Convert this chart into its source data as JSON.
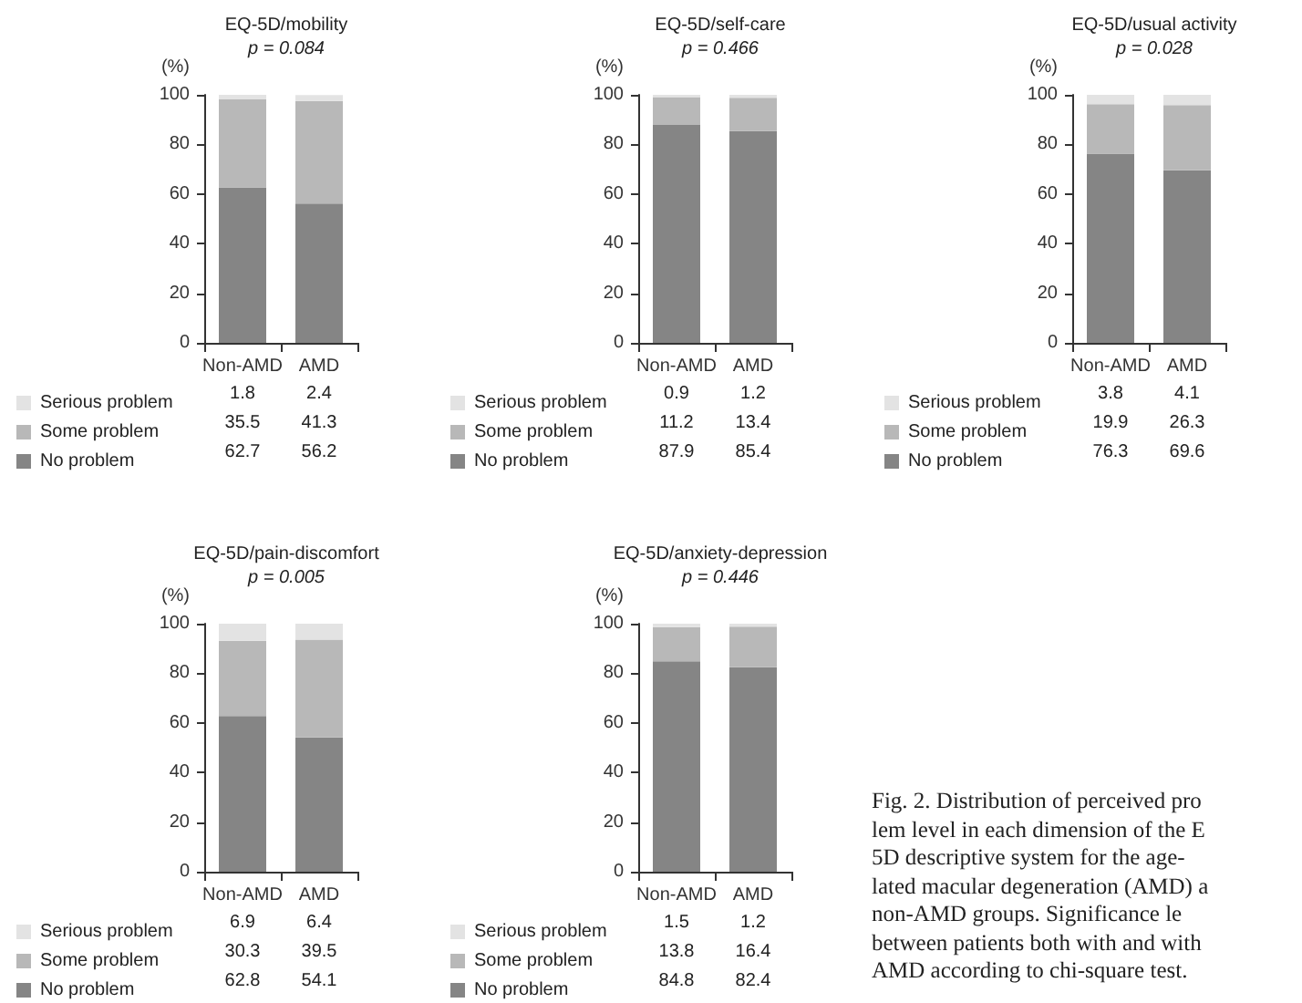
{
  "chart_data": [
    {
      "type": "bar",
      "title": "EQ-5D/mobility",
      "subtitle": "p = 0.084",
      "ylabel": "(%)",
      "categories": [
        "Non-AMD",
        "AMD"
      ],
      "stacked": true,
      "ylim": [
        0,
        100
      ],
      "yticks": [
        0,
        20,
        40,
        60,
        80,
        100
      ],
      "grid": false,
      "legend": "bottom",
      "data_labels": true,
      "series": [
        {
          "name": "No problem",
          "color": "#858585",
          "values": [
            62.7,
            56.2
          ]
        },
        {
          "name": "Some problem",
          "color": "#b8b8b8",
          "values": [
            35.5,
            41.3
          ]
        },
        {
          "name": "Serious problem",
          "color": "#e3e3e3",
          "values": [
            1.8,
            2.4
          ]
        }
      ]
    },
    {
      "type": "bar",
      "title": "EQ-5D/self-care",
      "subtitle": "p = 0.466",
      "ylabel": "(%)",
      "categories": [
        "Non-AMD",
        "AMD"
      ],
      "stacked": true,
      "ylim": [
        0,
        100
      ],
      "yticks": [
        0,
        20,
        40,
        60,
        80,
        100
      ],
      "grid": false,
      "legend": "bottom",
      "data_labels": true,
      "series": [
        {
          "name": "No problem",
          "color": "#858585",
          "values": [
            87.9,
            85.4
          ]
        },
        {
          "name": "Some problem",
          "color": "#b8b8b8",
          "values": [
            11.2,
            13.4
          ]
        },
        {
          "name": "Serious problem",
          "color": "#e3e3e3",
          "values": [
            0.9,
            1.2
          ]
        }
      ]
    },
    {
      "type": "bar",
      "title": "EQ-5D/usual activity",
      "subtitle": "p = 0.028",
      "ylabel": "(%)",
      "categories": [
        "Non-AMD",
        "AMD"
      ],
      "stacked": true,
      "ylim": [
        0,
        100
      ],
      "yticks": [
        0,
        20,
        40,
        60,
        80,
        100
      ],
      "grid": false,
      "legend": "bottom",
      "data_labels": true,
      "series": [
        {
          "name": "No problem",
          "color": "#858585",
          "values": [
            76.3,
            69.6
          ]
        },
        {
          "name": "Some problem",
          "color": "#b8b8b8",
          "values": [
            19.9,
            26.3
          ]
        },
        {
          "name": "Serious problem",
          "color": "#e3e3e3",
          "values": [
            3.8,
            4.1
          ]
        }
      ]
    },
    {
      "type": "bar",
      "title": "EQ-5D/pain-discomfort",
      "subtitle": "p = 0.005",
      "ylabel": "(%)",
      "categories": [
        "Non-AMD",
        "AMD"
      ],
      "stacked": true,
      "ylim": [
        0,
        100
      ],
      "yticks": [
        0,
        20,
        40,
        60,
        80,
        100
      ],
      "grid": false,
      "legend": "bottom",
      "data_labels": true,
      "series": [
        {
          "name": "No problem",
          "color": "#858585",
          "values": [
            62.8,
            54.1
          ]
        },
        {
          "name": "Some problem",
          "color": "#b8b8b8",
          "values": [
            30.3,
            39.5
          ]
        },
        {
          "name": "Serious problem",
          "color": "#e3e3e3",
          "values": [
            6.9,
            6.4
          ]
        }
      ]
    },
    {
      "type": "bar",
      "title": "EQ-5D/anxiety-depression",
      "subtitle": "p = 0.446",
      "ylabel": "(%)",
      "categories": [
        "Non-AMD",
        "AMD"
      ],
      "stacked": true,
      "ylim": [
        0,
        100
      ],
      "yticks": [
        0,
        20,
        40,
        60,
        80,
        100
      ],
      "grid": false,
      "legend": "bottom",
      "data_labels": true,
      "annotations": [
        "Fig. 2. Distribution of perceived pro\nlem level in each dimension of the E\n5D descriptive system for the age-\nlated macular degeneration (AMD) a\nnon-AMD groups. Significance le\nbetween patients both with and with\nAMD according to chi-square test."
      ],
      "series": [
        {
          "name": "No problem",
          "color": "#858585",
          "values": [
            84.8,
            82.4
          ]
        },
        {
          "name": "Some problem",
          "color": "#b8b8b8",
          "values": [
            13.8,
            16.4
          ]
        },
        {
          "name": "Serious problem",
          "color": "#e3e3e3",
          "values": [
            1.5,
            1.2
          ]
        }
      ]
    }
  ]
}
